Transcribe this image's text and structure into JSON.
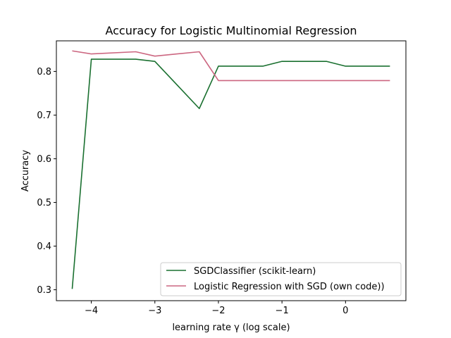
{
  "chart_data": {
    "type": "line",
    "title": "Accuracy for Logistic Multinomial Regression",
    "xlabel": "learning rate γ (log scale)",
    "ylabel": "Accuracy",
    "xlim": [
      -4.55,
      0.95
    ],
    "ylim": [
      0.275,
      0.87
    ],
    "xticks": [
      -4,
      -3,
      -2,
      -1,
      0
    ],
    "xtick_labels": [
      "−4",
      "−3",
      "−2",
      "−1",
      "0"
    ],
    "yticks": [
      0.3,
      0.4,
      0.5,
      0.6,
      0.7,
      0.8
    ],
    "ytick_labels": [
      "0.3",
      "0.4",
      "0.5",
      "0.6",
      "0.7",
      "0.8"
    ],
    "grid": false,
    "legend_position": "bottom-right",
    "x": [
      -4.301,
      -4.0,
      -3.301,
      -3.0,
      -2.301,
      -2.0,
      -1.301,
      -1.0,
      -0.301,
      0.0,
      0.699
    ],
    "series": [
      {
        "name": "SGDClassifier (scikit-learn)",
        "color": "#1a7030",
        "values": [
          0.302,
          0.828,
          0.828,
          0.823,
          0.715,
          0.812,
          0.812,
          0.823,
          0.823,
          0.812,
          0.812
        ]
      },
      {
        "name": "Logistic Regression with SGD (own code))",
        "color": "#cc6680",
        "values": [
          0.847,
          0.84,
          0.845,
          0.835,
          0.845,
          0.779,
          0.779,
          0.779,
          0.779,
          0.779,
          0.779
        ]
      }
    ]
  }
}
